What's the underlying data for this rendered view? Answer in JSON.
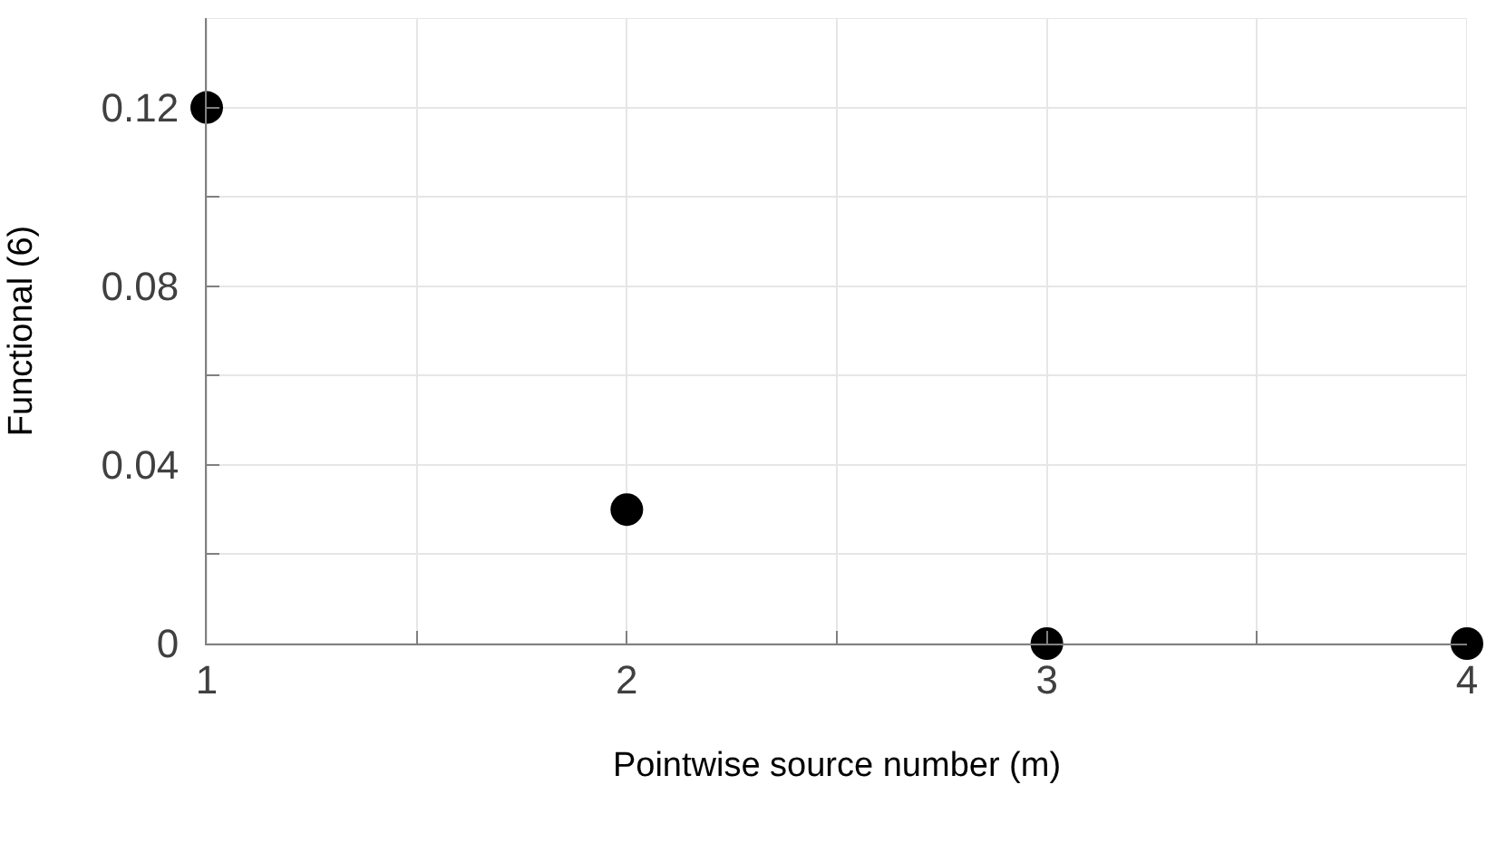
{
  "chart_data": {
    "type": "scatter",
    "xlabel": "Pointwise source number (m)",
    "ylabel": "Functional (6)",
    "x": [
      1,
      2,
      3,
      4
    ],
    "series": [
      {
        "color": "#000000",
        "values": [
          0.12,
          0.03,
          0,
          0
        ]
      }
    ],
    "xlim": [
      1,
      4
    ],
    "xticks": [
      1,
      {
        "value": 1.5,
        "label": null
      },
      2,
      {
        "value": 2.5,
        "label": null
      },
      3,
      {
        "value": 3.5,
        "label": null
      },
      4
    ],
    "ylim": [
      0,
      0.14
    ],
    "yticks": [
      0,
      {
        "value": 0.02,
        "label": null
      },
      0.04,
      {
        "value": 0.06,
        "label": null
      },
      0.08,
      {
        "value": 0.1,
        "label": null
      },
      0.12,
      {
        "value": 0.14,
        "label": null
      }
    ],
    "grid": true,
    "marker": "circle"
  }
}
